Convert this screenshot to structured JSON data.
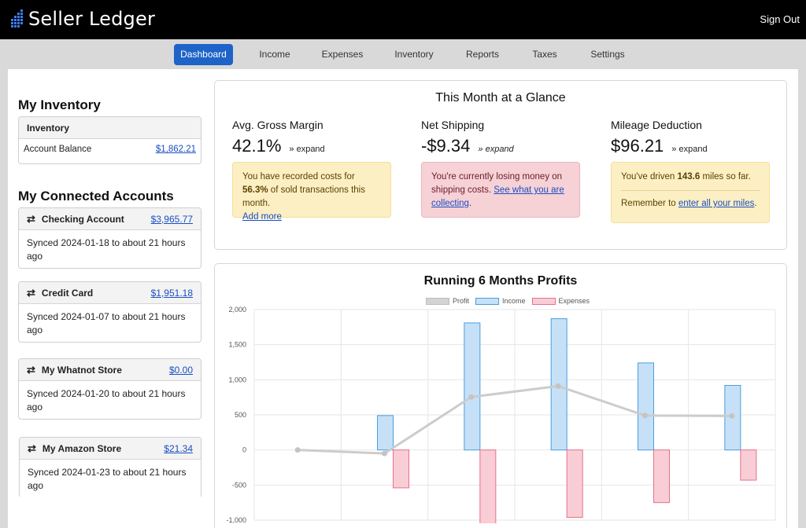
{
  "app": {
    "name": "Seller Ledger",
    "sign_out": "Sign Out"
  },
  "nav": {
    "items": [
      {
        "label": "Dashboard",
        "active": true
      },
      {
        "label": "Income"
      },
      {
        "label": "Expenses"
      },
      {
        "label": "Inventory"
      },
      {
        "label": "Reports"
      },
      {
        "label": "Taxes"
      },
      {
        "label": "Settings"
      }
    ]
  },
  "inventory": {
    "title": "My Inventory",
    "card_header": "Inventory",
    "row_label": "Account Balance",
    "row_value": "$1,862.21"
  },
  "accounts": {
    "title": "My Connected Accounts",
    "items": [
      {
        "name": "Checking Account",
        "amount": "$3,965.77",
        "sync": "Synced 2024-01-18 to about 21 hours ago"
      },
      {
        "name": "Credit Card",
        "amount": "$1,951.18",
        "sync": "Synced 2024-01-07 to about 21 hours ago"
      },
      {
        "name": "My Whatnot Store",
        "amount": "$0.00",
        "sync": "Synced 2024-01-20 to about 21 hours ago"
      },
      {
        "name": "My Amazon Store",
        "amount": "$21.34",
        "sync": "Synced 2024-01-23 to about 21 hours ago"
      }
    ]
  },
  "glance": {
    "title": "This Month at a Glance",
    "margin": {
      "label": "Avg. Gross Margin",
      "value": "42.1%",
      "expand": "expand",
      "msg_pre": "You have recorded costs for ",
      "msg_bold": "56.3%",
      "msg_post": " of sold transactions this month.",
      "link": "Add more"
    },
    "shipping": {
      "label": "Net Shipping",
      "value": "-$9.34",
      "expand": "expand",
      "msg": "You're currently losing money on shipping costs. ",
      "link": "See what you are collecting",
      "end": "."
    },
    "mileage": {
      "label": "Mileage Deduction",
      "value": "$96.21",
      "expand": "expand",
      "msg_pre": "You've driven ",
      "msg_bold": "143.6",
      "msg_post": " miles so far.",
      "reminder_pre": "Remember to ",
      "reminder_link": "enter all your miles",
      "reminder_end": "."
    }
  },
  "colors": {
    "income": "#4a9de0",
    "expenses": "#e8708a",
    "profit": "#cccccc",
    "nav_active": "#1e63c8"
  },
  "chart_data": {
    "type": "bar",
    "title": "Running 6 Months Profits",
    "legend_placement": "top-center",
    "grid": true,
    "ylim": [
      -1000,
      2000
    ],
    "yticks": [
      "2,000",
      "1,500",
      "1,000",
      "500",
      "0",
      "-500",
      "-1,000"
    ],
    "series": [
      {
        "name": "Profit",
        "kind": "line",
        "values": [
          0,
          -50,
          755,
          910,
          490,
          485
        ]
      },
      {
        "name": "Income",
        "kind": "bar",
        "values": [
          0,
          490,
          1810,
          1870,
          1240,
          920
        ]
      },
      {
        "name": "Expenses",
        "kind": "bar",
        "values": [
          0,
          -540,
          -1050,
          -960,
          -750,
          -430
        ]
      }
    ]
  }
}
